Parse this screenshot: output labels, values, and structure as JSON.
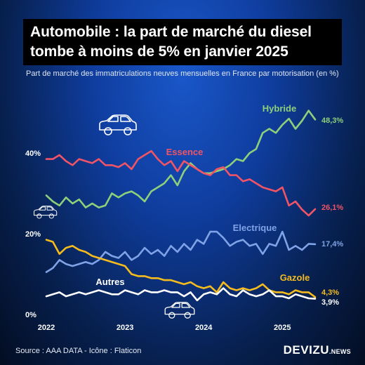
{
  "title_lines": [
    "Automobile : la part de marché du diesel",
    "tombe à moins de 5% en janvier 2025"
  ],
  "subtitle": "Part de marché des immatriculations neuves mensuelles en France par motorisation (en %)",
  "source": "Source : AAA DATA - Icône : Flaticon",
  "brand": {
    "main": "DEVIZU",
    "sub": ".NEWS"
  },
  "icons": [
    "car-icon",
    "car-icon",
    "car-icon"
  ],
  "chart_data": {
    "type": "line",
    "x_labels": [
      "2022",
      "2023",
      "2024",
      "2025"
    ],
    "x_start": "2022-01",
    "x_end": "2025-01",
    "yticks": [
      {
        "label": "40%",
        "value": 40
      },
      {
        "label": "20%",
        "value": 20
      },
      {
        "label": "0%",
        "value": 0
      }
    ],
    "ylim": [
      0,
      52
    ],
    "grid": false,
    "series": [
      {
        "name": "Hybride",
        "color": "#8ecf7a",
        "end_label": "48,3%",
        "values": [
          29.5,
          28,
          27,
          29,
          27.5,
          28.5,
          26.5,
          27.5,
          26.5,
          27,
          30,
          29,
          30,
          30.5,
          29.5,
          28,
          30.5,
          31.5,
          32.5,
          34.5,
          32,
          35.5,
          37.5,
          36,
          35,
          35,
          35.5,
          36,
          37,
          38.5,
          38,
          40,
          41,
          45,
          46,
          45,
          47,
          48.5,
          46,
          48,
          50.5,
          48.3
        ]
      },
      {
        "name": "Essence",
        "color": "#f05466",
        "end_label": "26,1%",
        "values": [
          38.5,
          38.5,
          39.5,
          38,
          37,
          38.5,
          38,
          37.5,
          38.5,
          37,
          37,
          36.5,
          37.5,
          36,
          38.5,
          39.5,
          40.5,
          38.5,
          37,
          38,
          35.5,
          38,
          37,
          36,
          35,
          34.5,
          36,
          36.5,
          34.5,
          34.5,
          33,
          33.5,
          32.5,
          31.5,
          31,
          30.5,
          31.5,
          27,
          28,
          26,
          24.5,
          26.1
        ]
      },
      {
        "name": "Electrique",
        "color": "#7fa3e6",
        "end_label": "17,4%",
        "values": [
          10.5,
          11.5,
          13.5,
          12.5,
          12,
          12.5,
          13,
          12.5,
          13.5,
          15.5,
          14.5,
          14,
          15.5,
          13.5,
          14.5,
          16.5,
          15,
          16,
          14.5,
          17,
          15.5,
          17.5,
          16,
          18.5,
          17.5,
          20.5,
          20.5,
          19,
          17,
          18,
          18.5,
          17,
          17.5,
          15,
          17.5,
          17,
          20.5,
          16,
          17,
          16,
          17.5,
          17.4
        ]
      },
      {
        "name": "Gazole",
        "color": "#f6bc1e",
        "end_label": "4,3%",
        "values": [
          18.5,
          18,
          15,
          16.5,
          17,
          16,
          15.5,
          14.5,
          14,
          13.5,
          13,
          12.5,
          12,
          10,
          9.5,
          9.5,
          9,
          9,
          8.5,
          8.5,
          8,
          7.5,
          8,
          7,
          6.5,
          7,
          5.5,
          8,
          6.5,
          6,
          6.5,
          6,
          6.5,
          7.5,
          6,
          5.5,
          5.5,
          5,
          6,
          5.5,
          5.5,
          4.3
        ]
      },
      {
        "name": "Autres",
        "color": "#ffffff",
        "end_label": "3,9%",
        "values": [
          4.5,
          5,
          5.5,
          4.5,
          5,
          5.5,
          5,
          5.5,
          6,
          5.5,
          5,
          5,
          6,
          5.5,
          5,
          6,
          5.5,
          5.5,
          6,
          5.5,
          5.5,
          4.5,
          5.5,
          3.5,
          5,
          5.5,
          5,
          6.5,
          5,
          4.5,
          6,
          5,
          4.5,
          5,
          6,
          4.5,
          4.5,
          4,
          5,
          4.5,
          4,
          3.9
        ]
      }
    ]
  }
}
